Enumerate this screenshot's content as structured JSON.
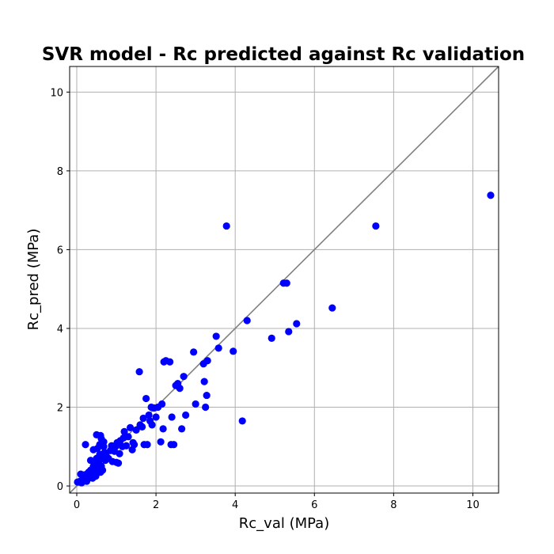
{
  "chart_data": {
    "type": "scatter",
    "title": "SVR model - Rc predicted against Rc validation",
    "xlabel": "Rc_val (MPa)",
    "ylabel": "Rc_pred (MPa)",
    "xlim": [
      -0.18,
      10.65
    ],
    "ylim": [
      -0.18,
      10.65
    ],
    "xticks": [
      0,
      2,
      4,
      6,
      8,
      10
    ],
    "yticks": [
      0,
      2,
      4,
      6,
      8,
      10
    ],
    "grid": true,
    "reference_line": "y = x",
    "colors": {
      "points": "#0000ff",
      "reference_line": "#808080",
      "grid": "#b0b0b0"
    },
    "points": [
      [
        0.02,
        0.1
      ],
      [
        0.08,
        0.12
      ],
      [
        0.1,
        0.3
      ],
      [
        0.12,
        0.08
      ],
      [
        0.15,
        0.15
      ],
      [
        0.18,
        0.28
      ],
      [
        0.2,
        0.2
      ],
      [
        0.22,
        1.05
      ],
      [
        0.25,
        0.12
      ],
      [
        0.25,
        0.3
      ],
      [
        0.28,
        0.18
      ],
      [
        0.3,
        0.35
      ],
      [
        0.32,
        0.25
      ],
      [
        0.35,
        0.4
      ],
      [
        0.35,
        0.65
      ],
      [
        0.38,
        0.3
      ],
      [
        0.4,
        0.2
      ],
      [
        0.42,
        0.5
      ],
      [
        0.42,
        0.92
      ],
      [
        0.45,
        0.35
      ],
      [
        0.45,
        0.55
      ],
      [
        0.48,
        0.25
      ],
      [
        0.5,
        1.3
      ],
      [
        0.5,
        0.7
      ],
      [
        0.5,
        0.45
      ],
      [
        0.52,
        0.95
      ],
      [
        0.55,
        0.6
      ],
      [
        0.55,
        0.42
      ],
      [
        0.58,
        0.8
      ],
      [
        0.58,
        1.05
      ],
      [
        0.6,
        1.28
      ],
      [
        0.6,
        0.35
      ],
      [
        0.62,
        0.5
      ],
      [
        0.62,
        1.2
      ],
      [
        0.65,
        0.7
      ],
      [
        0.65,
        0.4
      ],
      [
        0.68,
        1.0
      ],
      [
        0.68,
        1.12
      ],
      [
        0.7,
        0.85
      ],
      [
        0.72,
        0.65
      ],
      [
        0.75,
        0.75
      ],
      [
        0.8,
        0.7
      ],
      [
        0.85,
        0.9
      ],
      [
        0.88,
        1.02
      ],
      [
        0.9,
        0.62
      ],
      [
        0.95,
        0.88
      ],
      [
        0.98,
        1.0
      ],
      [
        1.0,
        0.6
      ],
      [
        1.02,
        1.1
      ],
      [
        1.05,
        0.58
      ],
      [
        1.08,
        0.82
      ],
      [
        1.1,
        1.15
      ],
      [
        1.15,
        1.0
      ],
      [
        1.18,
        1.22
      ],
      [
        1.2,
        1.38
      ],
      [
        1.25,
        1.02
      ],
      [
        1.3,
        1.25
      ],
      [
        1.35,
        1.48
      ],
      [
        1.4,
        0.92
      ],
      [
        1.42,
        1.1
      ],
      [
        1.45,
        1.05
      ],
      [
        1.5,
        1.42
      ],
      [
        1.58,
        2.9
      ],
      [
        1.6,
        1.55
      ],
      [
        1.65,
        1.5
      ],
      [
        1.68,
        1.72
      ],
      [
        1.7,
        1.05
      ],
      [
        1.75,
        2.22
      ],
      [
        1.78,
        1.05
      ],
      [
        1.82,
        1.8
      ],
      [
        1.85,
        1.65
      ],
      [
        1.88,
        2.0
      ],
      [
        1.9,
        1.55
      ],
      [
        1.95,
        1.98
      ],
      [
        2.0,
        1.75
      ],
      [
        2.05,
        2.0
      ],
      [
        2.12,
        1.12
      ],
      [
        2.15,
        2.08
      ],
      [
        2.18,
        1.45
      ],
      [
        2.2,
        3.15
      ],
      [
        2.25,
        3.18
      ],
      [
        2.35,
        3.15
      ],
      [
        2.38,
        1.05
      ],
      [
        2.4,
        1.75
      ],
      [
        2.45,
        1.05
      ],
      [
        2.5,
        2.55
      ],
      [
        2.55,
        2.6
      ],
      [
        2.6,
        2.48
      ],
      [
        2.65,
        1.45
      ],
      [
        2.7,
        2.78
      ],
      [
        2.75,
        1.8
      ],
      [
        2.95,
        3.4
      ],
      [
        3.0,
        2.08
      ],
      [
        3.2,
        3.1
      ],
      [
        3.22,
        2.65
      ],
      [
        3.25,
        2.0
      ],
      [
        3.28,
        2.3
      ],
      [
        3.3,
        3.18
      ],
      [
        3.52,
        3.8
      ],
      [
        3.58,
        3.5
      ],
      [
        3.78,
        6.6
      ],
      [
        3.95,
        3.42
      ],
      [
        4.18,
        1.65
      ],
      [
        4.3,
        4.2
      ],
      [
        4.92,
        3.75
      ],
      [
        5.22,
        5.15
      ],
      [
        5.3,
        5.15
      ],
      [
        5.35,
        3.92
      ],
      [
        5.55,
        4.12
      ],
      [
        6.45,
        4.52
      ],
      [
        7.55,
        6.6
      ],
      [
        10.45,
        7.38
      ]
    ]
  }
}
